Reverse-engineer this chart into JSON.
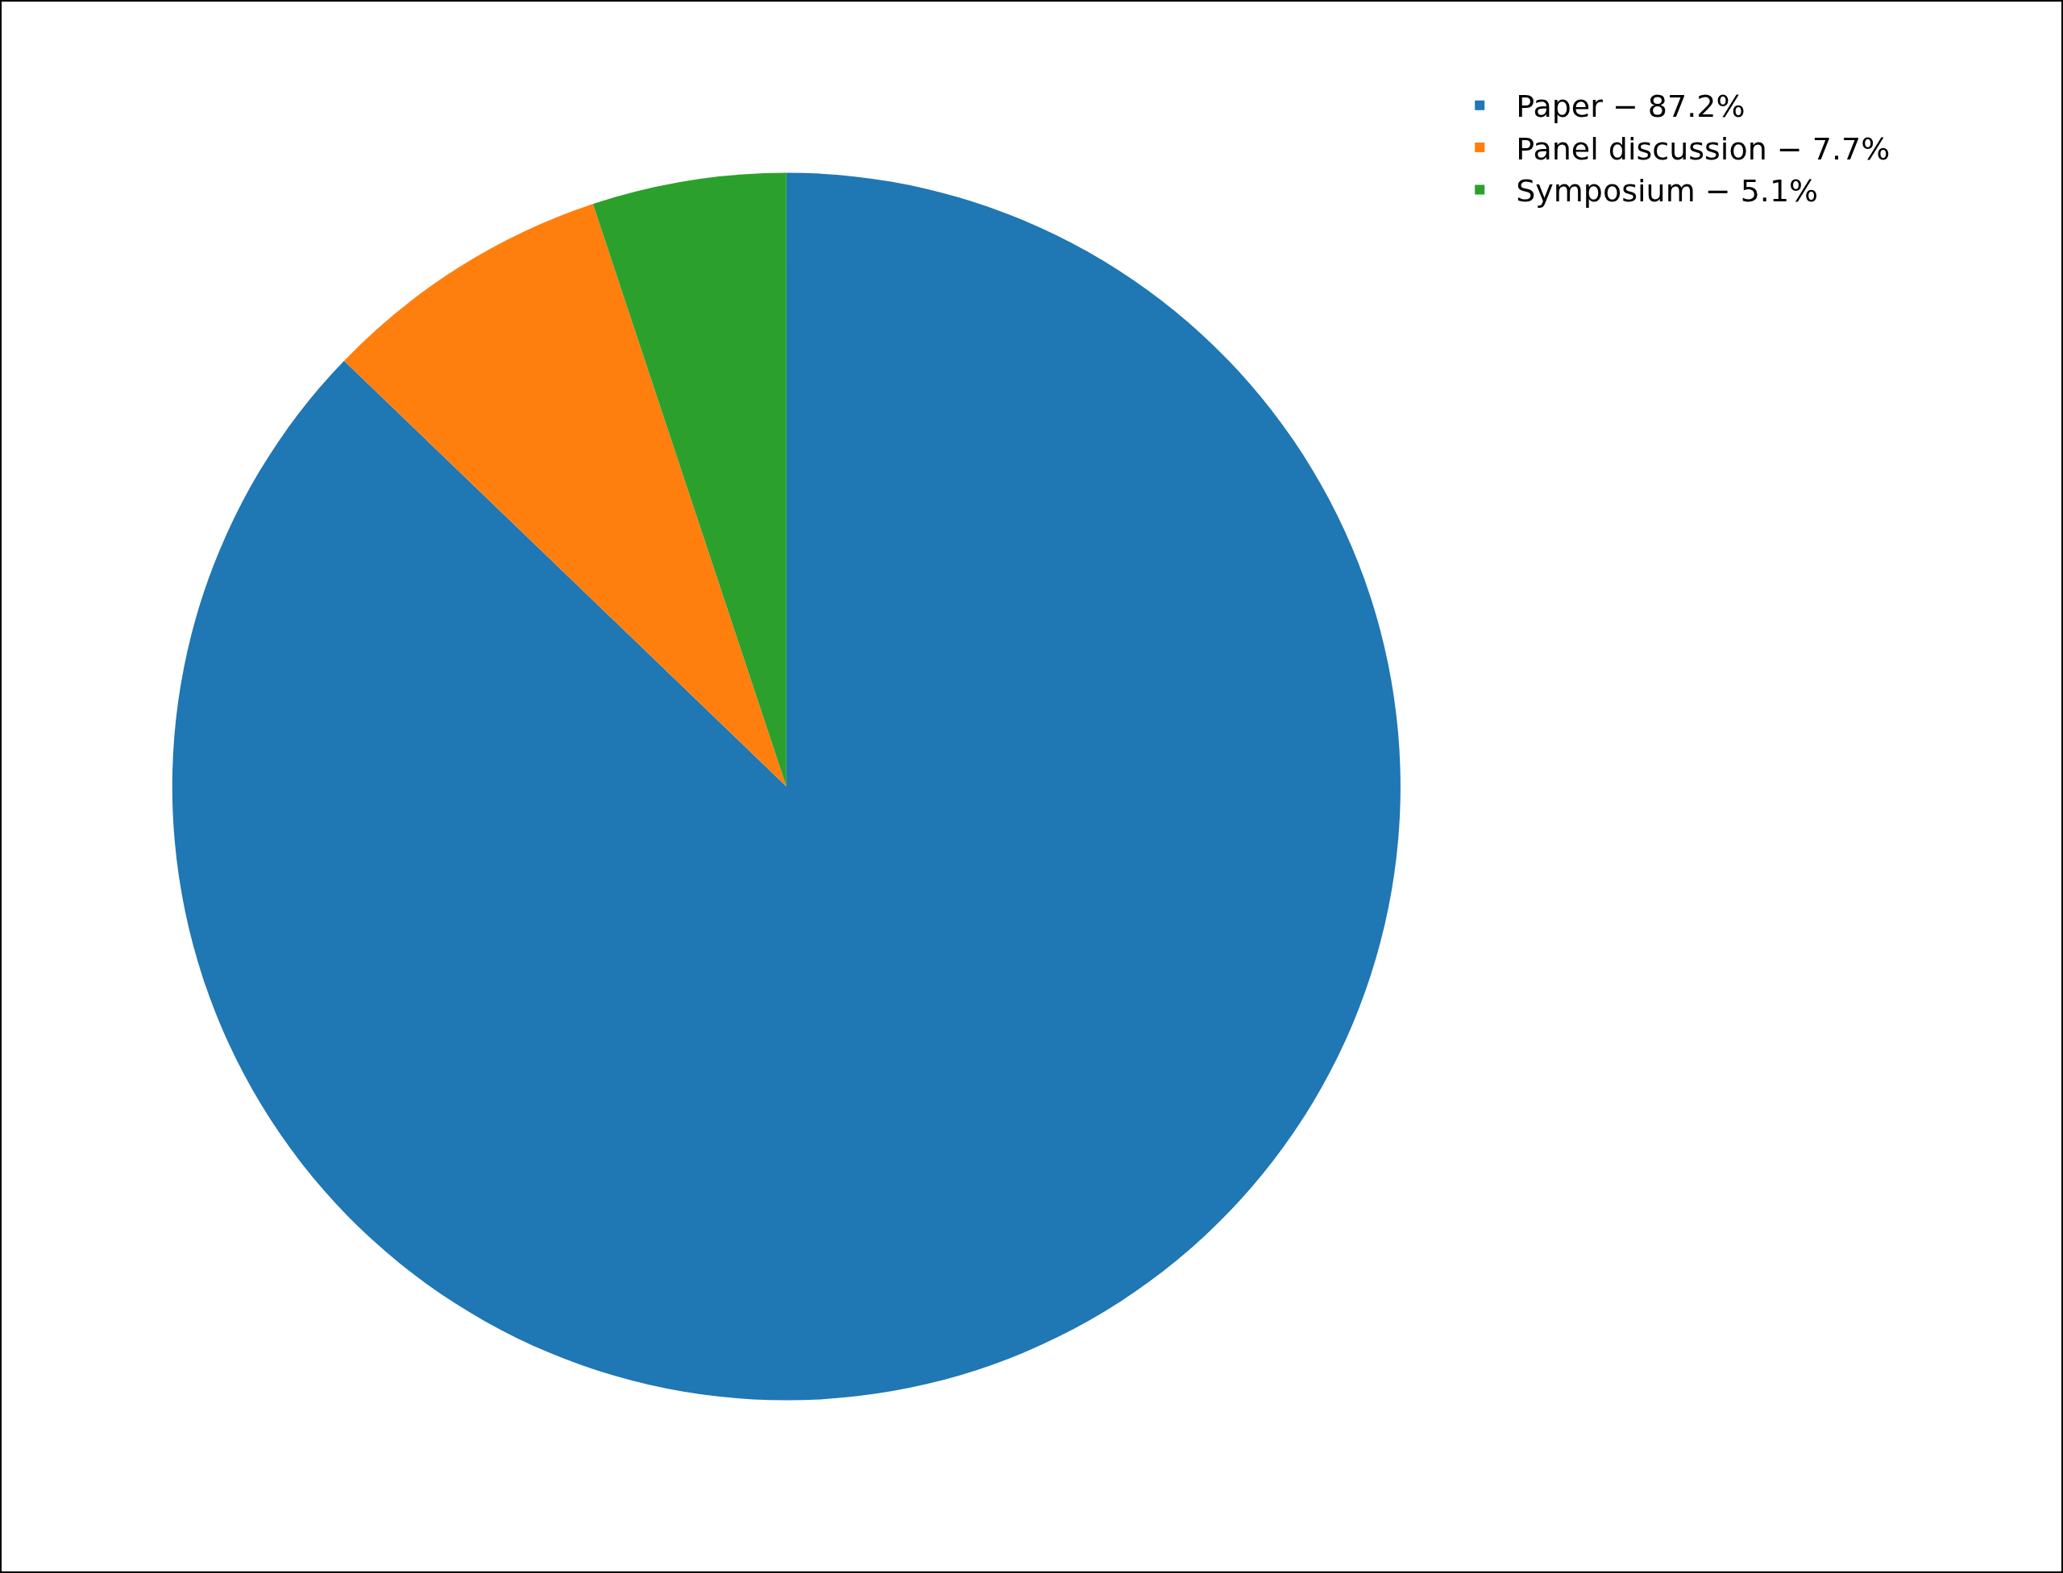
{
  "chart_data": {
    "type": "pie",
    "categories": [
      "Paper − 87.2%",
      "Panel discussion − 7.7%",
      "Symposium − 5.1%"
    ],
    "values": [
      87.2,
      7.7,
      5.1
    ],
    "colors": [
      "#1f77b4",
      "#ff7f0e",
      "#2ca02c"
    ],
    "legend": "top right"
  }
}
